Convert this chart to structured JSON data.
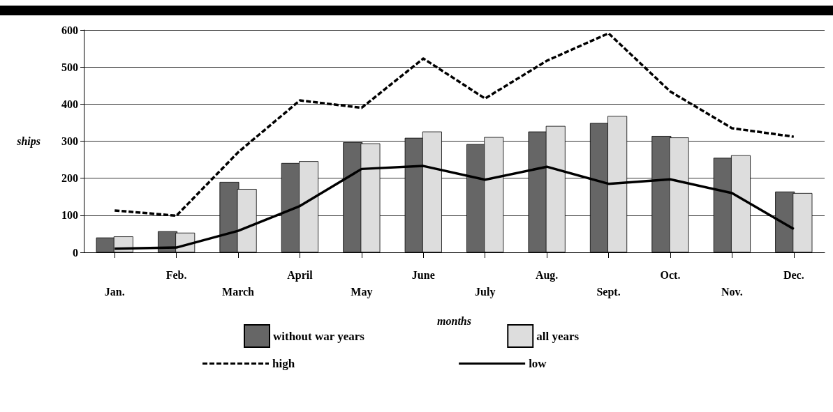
{
  "chart_data": {
    "type": "bar",
    "xlabel": "months",
    "ylabel": "ships",
    "categories": [
      "Jan.",
      "Feb.",
      "March",
      "April",
      "May",
      "June",
      "July",
      "Aug.",
      "Sept.",
      "Oct.",
      "Nov.",
      "Dec."
    ],
    "series": [
      {
        "name": "without war years",
        "color": "#666666",
        "values": [
          40,
          57,
          190,
          241,
          297,
          309,
          292,
          326,
          349,
          314,
          255,
          164
        ]
      },
      {
        "name": "all years",
        "color": "#dddddd",
        "values": [
          43,
          53,
          171,
          246,
          294,
          326,
          311,
          341,
          368,
          310,
          262,
          160
        ]
      },
      {
        "name": "high",
        "type": "line",
        "color": "#000000",
        "line_style": "dashed",
        "values": [
          113,
          99,
          270,
          410,
          390,
          523,
          415,
          517,
          591,
          434,
          335,
          312
        ]
      },
      {
        "name": "low",
        "type": "line",
        "color": "#000000",
        "line_style": "solid",
        "values": [
          10,
          13,
          58,
          125,
          225,
          233,
          196,
          231,
          185,
          197,
          160,
          63
        ]
      }
    ],
    "ylim": [
      0,
      600
    ],
    "yticks": [
      0,
      100,
      200,
      300,
      400,
      500,
      600
    ],
    "grid": "y",
    "legend": "bottom",
    "marker": "none"
  }
}
